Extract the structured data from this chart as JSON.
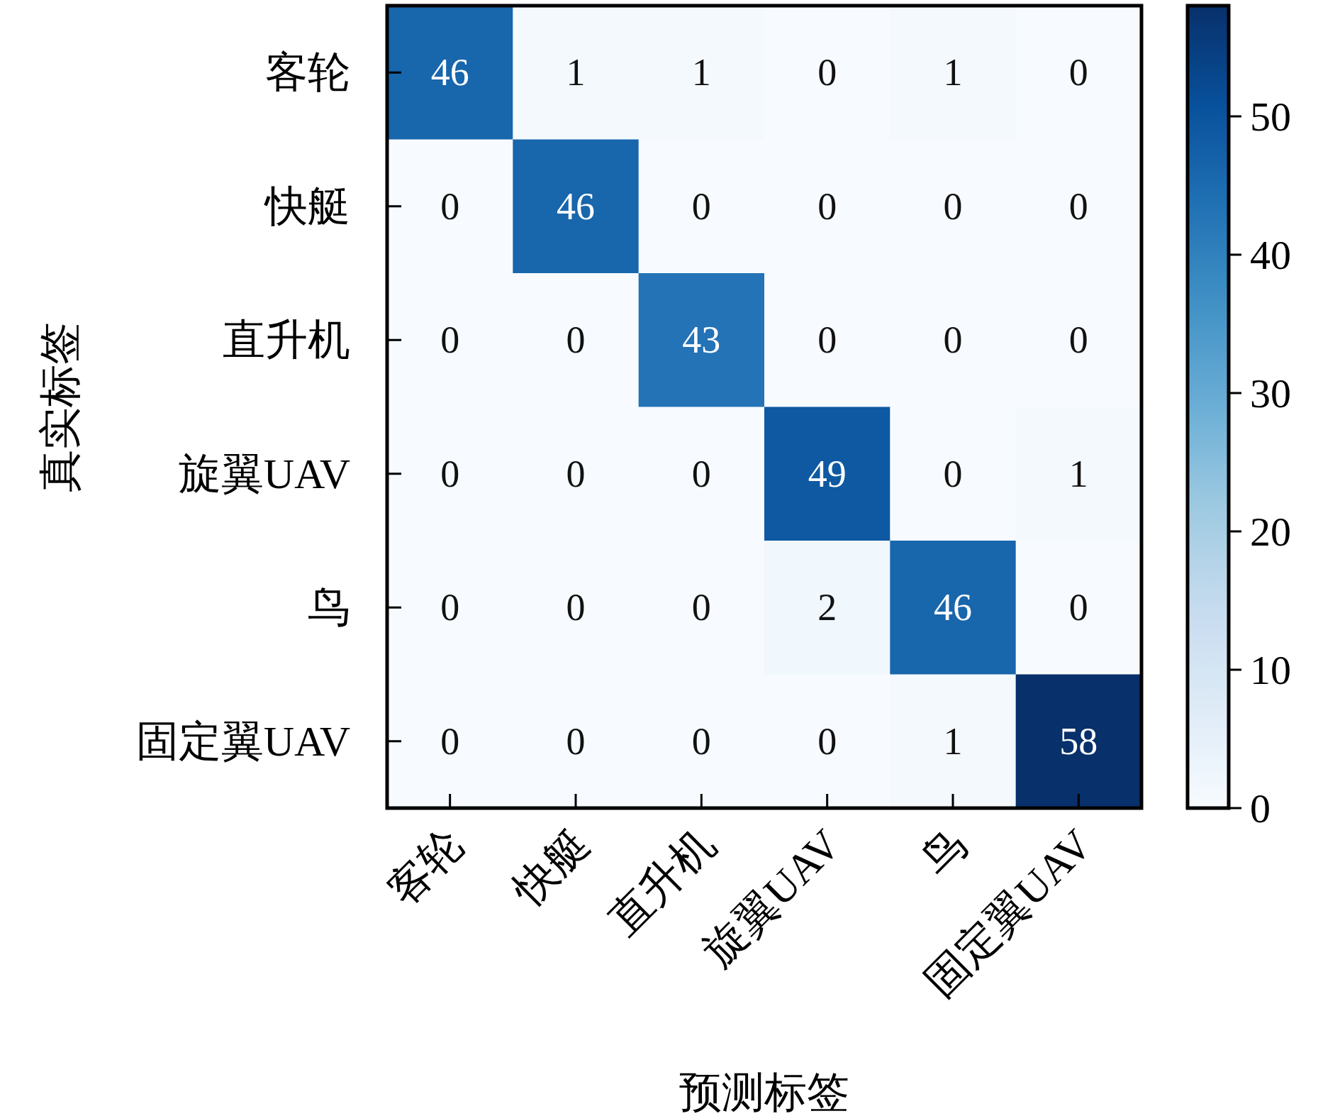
{
  "chart_data": {
    "type": "heatmap",
    "xlabel": "预测标签",
    "ylabel": "真实标签",
    "categories": [
      "客轮",
      "快艇",
      "直升机",
      "旋翼UAV",
      "鸟",
      "固定翼UAV"
    ],
    "y_categories": [
      "客轮",
      "快艇",
      "直升机",
      "旋翼UAV",
      "鸟",
      "固定翼UAV"
    ],
    "cells": [
      [
        46,
        1,
        1,
        0,
        1,
        0
      ],
      [
        0,
        46,
        0,
        0,
        0,
        0
      ],
      [
        0,
        0,
        43,
        0,
        0,
        0
      ],
      [
        0,
        0,
        0,
        49,
        0,
        1
      ],
      [
        0,
        0,
        0,
        2,
        46,
        0
      ],
      [
        0,
        0,
        0,
        0,
        1,
        58
      ]
    ],
    "clim": [
      0,
      58
    ],
    "cticks": [
      0,
      10,
      20,
      30,
      40,
      50
    ],
    "data_labels": true
  }
}
